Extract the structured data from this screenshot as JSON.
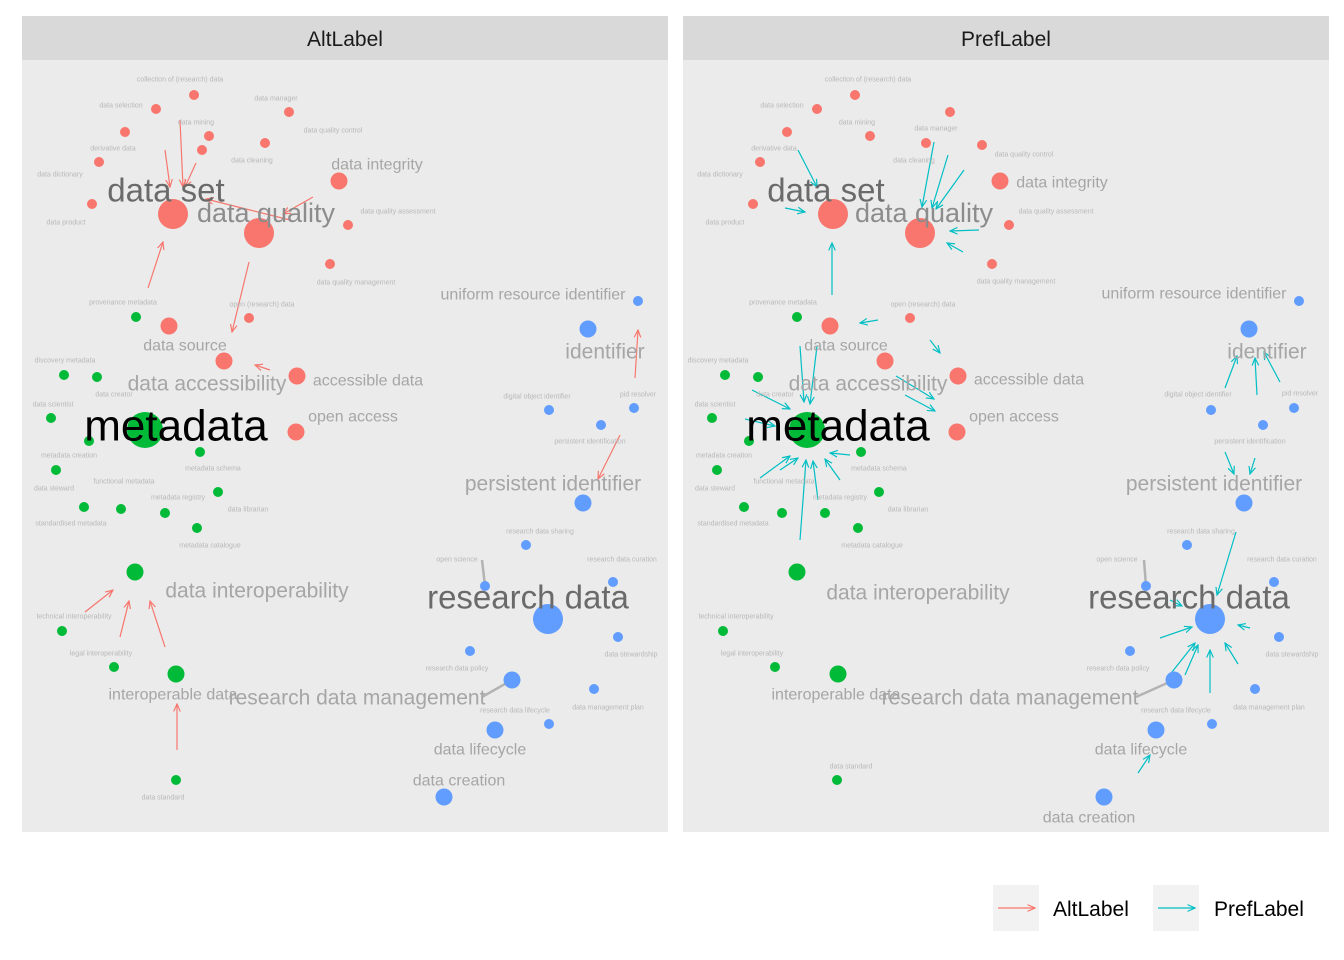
{
  "colors": {
    "panel_bg": "#ebebeb",
    "strip_bg": "#d9d9d9",
    "red": "#f8766d",
    "green": "#00ba38",
    "blue": "#619cff",
    "alt_edge": "#f8766d",
    "pref_edge": "#00bfc4"
  },
  "legend": {
    "items": [
      {
        "label": "AltLabel",
        "color": "#f8766d"
      },
      {
        "label": "PrefLabel",
        "color": "#00bfc4"
      }
    ]
  },
  "panels": [
    {
      "title": "AltLabel",
      "edge_color": "#f8766d",
      "nodes": [
        {
          "text": "collection of (research) data",
          "color": "red",
          "size": "small",
          "tier": "tiny"
        },
        {
          "text": "data selection",
          "color": "red",
          "size": "small",
          "tier": "tiny"
        },
        {
          "text": "data manager",
          "color": "red",
          "size": "small",
          "tier": "tiny"
        },
        {
          "text": "data mining",
          "color": "red",
          "size": "small",
          "tier": "tiny"
        },
        {
          "text": "data quality control",
          "color": "red",
          "size": "small",
          "tier": "tiny"
        },
        {
          "text": "derivative data",
          "color": "red",
          "size": "small",
          "tier": "tiny"
        },
        {
          "text": "data cleaning",
          "color": "red",
          "size": "small",
          "tier": "tiny"
        },
        {
          "text": "data integrity",
          "color": "red",
          "size": "medium",
          "tier": "mid"
        },
        {
          "text": "data dictionary",
          "color": "red",
          "size": "small",
          "tier": "tiny"
        },
        {
          "text": "data set",
          "color": "red",
          "size": "big",
          "tier": "large"
        },
        {
          "text": "data quality",
          "color": "red",
          "size": "big",
          "tier": "large2"
        },
        {
          "text": "data quality assessment",
          "color": "red",
          "size": "small",
          "tier": "tiny"
        },
        {
          "text": "data product",
          "color": "red",
          "size": "small",
          "tier": "tiny"
        },
        {
          "text": "data quality management",
          "color": "red",
          "size": "small",
          "tier": "tiny"
        },
        {
          "text": "provenance metadata",
          "color": "green",
          "size": "small",
          "tier": "tiny"
        },
        {
          "text": "open (research) data",
          "color": "red",
          "size": "small",
          "tier": "tiny"
        },
        {
          "text": "data source",
          "color": "red",
          "size": "medium",
          "tier": "mid"
        },
        {
          "text": "data accessibility",
          "color": "red",
          "size": "medium",
          "tier": "large3"
        },
        {
          "text": "accessible data",
          "color": "red",
          "size": "medium",
          "tier": "mid"
        },
        {
          "text": "open access",
          "color": "red",
          "size": "medium",
          "tier": "mid"
        },
        {
          "text": "discovery metadata",
          "color": "green",
          "size": "small",
          "tier": "tiny"
        },
        {
          "text": "data creator",
          "color": "green",
          "size": "small",
          "tier": "tiny"
        },
        {
          "text": "data scientist",
          "color": "green",
          "size": "small",
          "tier": "tiny"
        },
        {
          "text": "metadata",
          "color": "green",
          "size": "huge",
          "tier": "huge"
        },
        {
          "text": "metadata creation",
          "color": "green",
          "size": "small",
          "tier": "tiny"
        },
        {
          "text": "metadata schema",
          "color": "green",
          "size": "small",
          "tier": "tiny"
        },
        {
          "text": "data steward",
          "color": "green",
          "size": "small",
          "tier": "tiny"
        },
        {
          "text": "functional metadata",
          "color": "green",
          "size": "small",
          "tier": "tiny"
        },
        {
          "text": "metadata registry",
          "color": "green",
          "size": "small",
          "tier": "tiny"
        },
        {
          "text": "data librarian",
          "color": "green",
          "size": "small",
          "tier": "tiny"
        },
        {
          "text": "standardised metadata",
          "color": "green",
          "size": "small",
          "tier": "tiny"
        },
        {
          "text": "metadata catalogue",
          "color": "green",
          "size": "small",
          "tier": "tiny"
        },
        {
          "text": "data interoperability",
          "color": "green",
          "size": "medium",
          "tier": "large3"
        },
        {
          "text": "technical interoperability",
          "color": "green",
          "size": "small",
          "tier": "tiny"
        },
        {
          "text": "legal interoperability",
          "color": "green",
          "size": "small",
          "tier": "tiny"
        },
        {
          "text": "interoperable data",
          "color": "green",
          "size": "medium",
          "tier": "mid"
        },
        {
          "text": "data standard",
          "color": "green",
          "size": "small",
          "tier": "tiny"
        },
        {
          "text": "uniform resource identifier",
          "color": "blue",
          "size": "small",
          "tier": "mid"
        },
        {
          "text": "identifier",
          "color": "blue",
          "size": "medium",
          "tier": "large3"
        },
        {
          "text": "pid resolver",
          "color": "blue",
          "size": "small",
          "tier": "tiny"
        },
        {
          "text": "digital object identifier",
          "color": "blue",
          "size": "small",
          "tier": "tiny"
        },
        {
          "text": "persistent identification",
          "color": "blue",
          "size": "small",
          "tier": "tiny"
        },
        {
          "text": "persistent identifier",
          "color": "blue",
          "size": "medium",
          "tier": "large3"
        },
        {
          "text": "research data sharing",
          "color": "blue",
          "size": "small",
          "tier": "tiny"
        },
        {
          "text": "open science",
          "color": "blue",
          "size": "small",
          "tier": "tiny"
        },
        {
          "text": "research data curation",
          "color": "blue",
          "size": "small",
          "tier": "tiny"
        },
        {
          "text": "research data",
          "color": "blue",
          "size": "big",
          "tier": "large"
        },
        {
          "text": "research data policy",
          "color": "blue",
          "size": "small",
          "tier": "tiny"
        },
        {
          "text": "data stewardship",
          "color": "blue",
          "size": "small",
          "tier": "tiny"
        },
        {
          "text": "research data management",
          "color": "blue",
          "size": "medium",
          "tier": "large3"
        },
        {
          "text": "research data lifecycle",
          "color": "blue",
          "size": "small",
          "tier": "tiny"
        },
        {
          "text": "data management plan",
          "color": "blue",
          "size": "small",
          "tier": "tiny"
        },
        {
          "text": "data lifecycle",
          "color": "blue",
          "size": "medium",
          "tier": "mid"
        },
        {
          "text": "data creation",
          "color": "blue",
          "size": "medium",
          "tier": "mid"
        }
      ]
    },
    {
      "title": "PrefLabel",
      "edge_color": "#00bfc4",
      "nodes": [
        {
          "text": "collection of (research) data",
          "color": "red",
          "size": "small",
          "tier": "tiny"
        },
        {
          "text": "data selection",
          "color": "red",
          "size": "small",
          "tier": "tiny"
        },
        {
          "text": "data mining",
          "color": "red",
          "size": "small",
          "tier": "tiny"
        },
        {
          "text": "data manager",
          "color": "red",
          "size": "small",
          "tier": "tiny"
        },
        {
          "text": "derivative data",
          "color": "red",
          "size": "small",
          "tier": "tiny"
        },
        {
          "text": "data cleaning",
          "color": "red",
          "size": "small",
          "tier": "tiny"
        },
        {
          "text": "data quality control",
          "color": "red",
          "size": "small",
          "tier": "tiny"
        },
        {
          "text": "data dictionary",
          "color": "red",
          "size": "small",
          "tier": "tiny"
        },
        {
          "text": "data integrity",
          "color": "red",
          "size": "medium",
          "tier": "mid"
        },
        {
          "text": "data set",
          "color": "red",
          "size": "big",
          "tier": "large"
        },
        {
          "text": "data quality",
          "color": "red",
          "size": "big",
          "tier": "large2"
        },
        {
          "text": "data quality assessment",
          "color": "red",
          "size": "small",
          "tier": "tiny"
        },
        {
          "text": "data product",
          "color": "red",
          "size": "small",
          "tier": "tiny"
        },
        {
          "text": "data quality management",
          "color": "red",
          "size": "small",
          "tier": "tiny"
        },
        {
          "text": "provenance metadata",
          "color": "green",
          "size": "small",
          "tier": "tiny"
        },
        {
          "text": "open (research) data",
          "color": "red",
          "size": "small",
          "tier": "tiny"
        },
        {
          "text": "data source",
          "color": "red",
          "size": "medium",
          "tier": "mid"
        },
        {
          "text": "data accessibility",
          "color": "red",
          "size": "medium",
          "tier": "large3"
        },
        {
          "text": "accessible data",
          "color": "red",
          "size": "medium",
          "tier": "mid"
        },
        {
          "text": "open access",
          "color": "red",
          "size": "medium",
          "tier": "mid"
        },
        {
          "text": "discovery metadata",
          "color": "green",
          "size": "small",
          "tier": "tiny"
        },
        {
          "text": "data creator",
          "color": "green",
          "size": "small",
          "tier": "tiny"
        },
        {
          "text": "data scientist",
          "color": "green",
          "size": "small",
          "tier": "tiny"
        },
        {
          "text": "metadata",
          "color": "green",
          "size": "huge",
          "tier": "huge"
        },
        {
          "text": "metadata creation",
          "color": "green",
          "size": "small",
          "tier": "tiny"
        },
        {
          "text": "metadata schema",
          "color": "green",
          "size": "small",
          "tier": "tiny"
        },
        {
          "text": "data steward",
          "color": "green",
          "size": "small",
          "tier": "tiny"
        },
        {
          "text": "functional metadata",
          "color": "green",
          "size": "small",
          "tier": "tiny"
        },
        {
          "text": "metadata registry",
          "color": "green",
          "size": "small",
          "tier": "tiny"
        },
        {
          "text": "data librarian",
          "color": "green",
          "size": "small",
          "tier": "tiny"
        },
        {
          "text": "standardised metadata",
          "color": "green",
          "size": "small",
          "tier": "tiny"
        },
        {
          "text": "metadata catalogue",
          "color": "green",
          "size": "small",
          "tier": "tiny"
        },
        {
          "text": "data interoperability",
          "color": "green",
          "size": "medium",
          "tier": "large3"
        },
        {
          "text": "technical interoperability",
          "color": "green",
          "size": "small",
          "tier": "tiny"
        },
        {
          "text": "legal interoperability",
          "color": "green",
          "size": "small",
          "tier": "tiny"
        },
        {
          "text": "interoperable data",
          "color": "green",
          "size": "medium",
          "tier": "mid"
        },
        {
          "text": "data standard",
          "color": "green",
          "size": "small",
          "tier": "tiny"
        },
        {
          "text": "uniform resource identifier",
          "color": "blue",
          "size": "small",
          "tier": "mid"
        },
        {
          "text": "identifier",
          "color": "blue",
          "size": "medium",
          "tier": "large3"
        },
        {
          "text": "digital object identifier",
          "color": "blue",
          "size": "small",
          "tier": "tiny"
        },
        {
          "text": "pid resolver",
          "color": "blue",
          "size": "small",
          "tier": "tiny"
        },
        {
          "text": "persistent identification",
          "color": "blue",
          "size": "small",
          "tier": "tiny"
        },
        {
          "text": "persistent identifier",
          "color": "blue",
          "size": "medium",
          "tier": "large3"
        },
        {
          "text": "research data sharing",
          "color": "blue",
          "size": "small",
          "tier": "tiny"
        },
        {
          "text": "open science",
          "color": "blue",
          "size": "small",
          "tier": "tiny"
        },
        {
          "text": "research data curation",
          "color": "blue",
          "size": "small",
          "tier": "tiny"
        },
        {
          "text": "research data",
          "color": "blue",
          "size": "big",
          "tier": "large"
        },
        {
          "text": "research data policy",
          "color": "blue",
          "size": "small",
          "tier": "tiny"
        },
        {
          "text": "data stewardship",
          "color": "blue",
          "size": "small",
          "tier": "tiny"
        },
        {
          "text": "research data management",
          "color": "blue",
          "size": "medium",
          "tier": "large3"
        },
        {
          "text": "research data lifecycle",
          "color": "blue",
          "size": "small",
          "tier": "tiny"
        },
        {
          "text": "data management plan",
          "color": "blue",
          "size": "small",
          "tier": "tiny"
        },
        {
          "text": "data lifecycle",
          "color": "blue",
          "size": "medium",
          "tier": "mid"
        },
        {
          "text": "data creation",
          "color": "blue",
          "size": "medium",
          "tier": "mid"
        }
      ]
    }
  ]
}
